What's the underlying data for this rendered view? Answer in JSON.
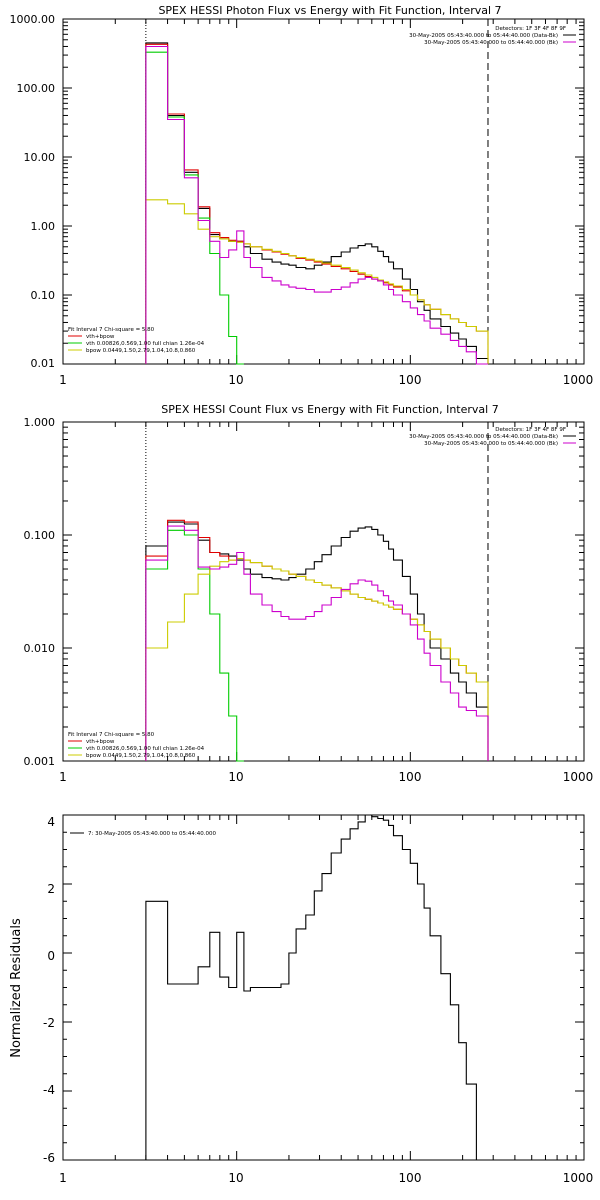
{
  "colors": {
    "total": "#000000",
    "model": "#e00000",
    "vth": "#00cc00",
    "bpow": "#cccc00",
    "bk": "#cc00cc",
    "axes": "#000000"
  },
  "x_ticks": [
    "1",
    "10",
    "100",
    "1000"
  ],
  "panels": [
    {
      "id": "photon",
      "title": "SPEX HESSI Photon Flux vs Energy with Fit Function, Interval 7",
      "y_ticks": [
        "1000.00",
        "100.00",
        "10.00",
        "1.00",
        "0.10",
        "0.01"
      ],
      "detectors": "Detectors: 1F 3F 4F 8F 9F",
      "legend_right": [
        {
          "text": "30-May-2005 05:43:40.000 to 05:44:40.000 (Data-Bk)",
          "color": "#000000"
        },
        {
          "text": "30-May-2005 05:43:40.000 to 05:44:40.000 (Bk)",
          "color": "#cc00cc"
        }
      ],
      "legend_left": [
        {
          "text": "Fit Interval 7   Chi-square = 5.80",
          "color": "#000000"
        },
        {
          "text": "vth+bpow",
          "color": "#e00000"
        },
        {
          "text": "vth 0.00826,0.569,1.00  full chian 1.26e-04",
          "color": "#00cc00"
        },
        {
          "text": "bpow 0.0449,1.50,2.79,1.04,10.8,0.860",
          "color": "#cccc00"
        }
      ]
    },
    {
      "id": "count",
      "title": "SPEX HESSI Count Flux vs Energy with Fit Function, Interval 7",
      "y_ticks": [
        "1.000",
        "0.100",
        "0.010",
        "0.001"
      ],
      "detectors": "Detectors: 1F 3F 4F 8F 9F",
      "legend_right": [
        {
          "text": "30-May-2005 05:43:40.000 to 05:44:40.000 (Data-Bk)",
          "color": "#000000"
        },
        {
          "text": "30-May-2005 05:43:40.000 to 05:44:40.000 (Bk)",
          "color": "#cc00cc"
        }
      ],
      "legend_left": [
        {
          "text": "Fit Interval 7   Chi-square = 5.80",
          "color": "#000000"
        },
        {
          "text": "vth+bpow",
          "color": "#e00000"
        },
        {
          "text": "vth 0.00826,0.569,1.00  full chian 1.26e-04",
          "color": "#00cc00"
        },
        {
          "text": "bpow 0.0449,1.50,2.79,1.04,10.8,0.860",
          "color": "#cccc00"
        }
      ]
    },
    {
      "id": "resid",
      "title": "",
      "y_ticks": [
        "4",
        "2",
        "0",
        "-2",
        "-4",
        "-6"
      ],
      "ylabel": "Normalized Residuals",
      "legend_left": [
        {
          "text": "7: 30-May-2005 05:43:40.000 to 05:44:40.000",
          "color": "#000000"
        }
      ]
    }
  ],
  "chart_data": [
    {
      "type": "line",
      "title": "SPEX HESSI Photon Flux vs Energy with Fit Function, Interval 7",
      "xscale": "log",
      "yscale": "log",
      "xlim": [
        1,
        1000
      ],
      "ylim": [
        0.01,
        1000
      ],
      "vlines": [
        {
          "x": 3,
          "style": "dotted"
        },
        {
          "x": 280,
          "style": "dashed"
        }
      ],
      "bin_edges": [
        3,
        4,
        5,
        6,
        7,
        8,
        9,
        10,
        11,
        12,
        14,
        16,
        18,
        20,
        22,
        25,
        28,
        31,
        35,
        40,
        45,
        50,
        55,
        60,
        65,
        70,
        75,
        80,
        90,
        100,
        110,
        120,
        130,
        150,
        170,
        190,
        210,
        240,
        280
      ],
      "series": [
        {
          "name": "30-May-2005 05:43:40.000 to 05:44:40.000 (Data-Bk)",
          "key": "total",
          "values": [
            450,
            40,
            6,
            1.8,
            0.75,
            0.65,
            0.6,
            0.6,
            0.5,
            0.4,
            0.33,
            0.3,
            0.28,
            0.27,
            0.25,
            0.24,
            0.27,
            0.3,
            0.36,
            0.42,
            0.48,
            0.52,
            0.55,
            0.5,
            0.43,
            0.36,
            0.3,
            0.24,
            0.17,
            0.12,
            0.08,
            0.06,
            0.045,
            0.035,
            0.028,
            0.023,
            0.018,
            0.012
          ]
        },
        {
          "name": "vth+bpow",
          "key": "model",
          "values": [
            430,
            42,
            6.5,
            1.9,
            0.8,
            0.68,
            0.62,
            0.6,
            0.55,
            0.5,
            0.45,
            0.42,
            0.39,
            0.37,
            0.34,
            0.32,
            0.3,
            0.28,
            0.26,
            0.24,
            0.22,
            0.2,
            0.185,
            0.17,
            0.16,
            0.15,
            0.14,
            0.13,
            0.115,
            0.1,
            0.085,
            0.072,
            0.062,
            0.052,
            0.045,
            0.04,
            0.035,
            0.03
          ]
        },
        {
          "name": "vth",
          "key": "vth",
          "values": [
            330,
            38,
            5.5,
            1.3,
            0.4,
            0.1,
            0.025,
            0.008
          ]
        },
        {
          "name": "bpow",
          "key": "bpow",
          "values": [
            2.4,
            2.1,
            1.5,
            0.9,
            0.7,
            0.65,
            0.6,
            0.58,
            0.55,
            0.5,
            0.46,
            0.43,
            0.4,
            0.37,
            0.35,
            0.33,
            0.31,
            0.29,
            0.27,
            0.25,
            0.23,
            0.21,
            0.195,
            0.18,
            0.165,
            0.155,
            0.145,
            0.135,
            0.12,
            0.1,
            0.085,
            0.072,
            0.062,
            0.052,
            0.045,
            0.04,
            0.035,
            0.03
          ]
        },
        {
          "name": "30-May-2005 05:43:40.000 to 05:44:40.000 (Bk)",
          "key": "bk",
          "values": [
            400,
            35,
            5,
            1.2,
            0.6,
            0.35,
            0.45,
            0.85,
            0.35,
            0.25,
            0.18,
            0.16,
            0.14,
            0.13,
            0.125,
            0.12,
            0.11,
            0.11,
            0.12,
            0.13,
            0.15,
            0.17,
            0.18,
            0.17,
            0.16,
            0.14,
            0.12,
            0.1,
            0.08,
            0.065,
            0.052,
            0.042,
            0.033,
            0.027,
            0.022,
            0.018,
            0.015,
            0.01
          ]
        }
      ]
    },
    {
      "type": "line",
      "title": "SPEX HESSI Count Flux vs Energy with Fit Function, Interval 7",
      "xscale": "log",
      "yscale": "log",
      "xlim": [
        1,
        1000
      ],
      "ylim": [
        0.001,
        1
      ],
      "vlines": [
        {
          "x": 3,
          "style": "dotted"
        },
        {
          "x": 280,
          "style": "dashed"
        }
      ],
      "bin_edges": [
        3,
        4,
        5,
        6,
        7,
        8,
        9,
        10,
        11,
        12,
        14,
        16,
        18,
        20,
        22,
        25,
        28,
        31,
        35,
        40,
        45,
        50,
        55,
        60,
        65,
        70,
        75,
        80,
        90,
        100,
        110,
        120,
        130,
        150,
        170,
        190,
        210,
        240,
        280
      ],
      "series": [
        {
          "name": "30-May-2005 05:43:40.000 to 05:44:40.000 (Data-Bk)",
          "key": "total",
          "values": [
            0.08,
            0.13,
            0.125,
            0.09,
            0.07,
            0.068,
            0.065,
            0.06,
            0.05,
            0.045,
            0.042,
            0.041,
            0.04,
            0.042,
            0.045,
            0.05,
            0.058,
            0.067,
            0.08,
            0.095,
            0.108,
            0.115,
            0.118,
            0.112,
            0.1,
            0.088,
            0.075,
            0.06,
            0.043,
            0.03,
            0.02,
            0.014,
            0.01,
            0.008,
            0.006,
            0.005,
            0.004,
            0.003
          ]
        },
        {
          "name": "vth+bpow",
          "key": "model",
          "values": [
            0.065,
            0.135,
            0.13,
            0.095,
            0.07,
            0.065,
            0.06,
            0.062,
            0.06,
            0.057,
            0.053,
            0.05,
            0.048,
            0.045,
            0.043,
            0.04,
            0.038,
            0.036,
            0.034,
            0.032,
            0.03,
            0.028,
            0.027,
            0.026,
            0.025,
            0.024,
            0.023,
            0.022,
            0.02,
            0.018,
            0.016,
            0.014,
            0.012,
            0.01,
            0.008,
            0.007,
            0.006,
            0.005
          ]
        },
        {
          "name": "vth",
          "key": "vth",
          "values": [
            0.05,
            0.11,
            0.1,
            0.05,
            0.02,
            0.006,
            0.0025,
            0.001
          ]
        },
        {
          "name": "bpow",
          "key": "bpow",
          "values": [
            0.01,
            0.017,
            0.03,
            0.045,
            0.053,
            0.058,
            0.06,
            0.062,
            0.06,
            0.057,
            0.053,
            0.05,
            0.048,
            0.045,
            0.043,
            0.04,
            0.038,
            0.036,
            0.034,
            0.032,
            0.03,
            0.028,
            0.027,
            0.026,
            0.025,
            0.024,
            0.023,
            0.022,
            0.02,
            0.018,
            0.016,
            0.014,
            0.012,
            0.01,
            0.008,
            0.007,
            0.006,
            0.005
          ]
        },
        {
          "name": "30-May-2005 05:43:40.000 to 05:44:40.000 (Bk)",
          "key": "bk",
          "values": [
            0.06,
            0.12,
            0.11,
            0.052,
            0.05,
            0.052,
            0.055,
            0.07,
            0.045,
            0.03,
            0.024,
            0.021,
            0.019,
            0.018,
            0.018,
            0.019,
            0.021,
            0.024,
            0.028,
            0.033,
            0.037,
            0.04,
            0.039,
            0.036,
            0.032,
            0.029,
            0.026,
            0.024,
            0.02,
            0.016,
            0.012,
            0.009,
            0.007,
            0.005,
            0.004,
            0.003,
            0.0028,
            0.0025
          ]
        }
      ]
    },
    {
      "type": "line",
      "title": "",
      "ylabel": "Normalized Residuals",
      "xscale": "log",
      "yscale": "linear",
      "xlim": [
        1,
        1000
      ],
      "ylim": [
        -6,
        4
      ],
      "bin_edges": [
        3,
        4,
        5,
        6,
        7,
        8,
        9,
        10,
        11,
        12,
        14,
        16,
        18,
        20,
        22,
        25,
        28,
        31,
        35,
        40,
        45,
        50,
        55,
        60,
        65,
        70,
        75,
        80,
        90,
        100,
        110,
        120,
        130,
        150,
        170,
        190,
        210,
        240,
        280
      ],
      "series": [
        {
          "name": "7: 30-May-2005 05:43:40.000 to 05:44:40.000",
          "key": "total",
          "values": [
            1.5,
            -0.9,
            -0.9,
            -0.4,
            0.6,
            -0.7,
            -1.0,
            0.6,
            -1.1,
            -1.0,
            -1.0,
            -1.0,
            -0.9,
            0.0,
            0.7,
            1.1,
            1.8,
            2.3,
            2.9,
            3.3,
            3.6,
            3.8,
            4.0,
            3.95,
            3.9,
            3.85,
            3.7,
            3.4,
            3.0,
            2.6,
            2.0,
            1.3,
            0.5,
            -0.6,
            -1.5,
            -2.6,
            -3.8,
            -6.0
          ]
        }
      ]
    }
  ]
}
